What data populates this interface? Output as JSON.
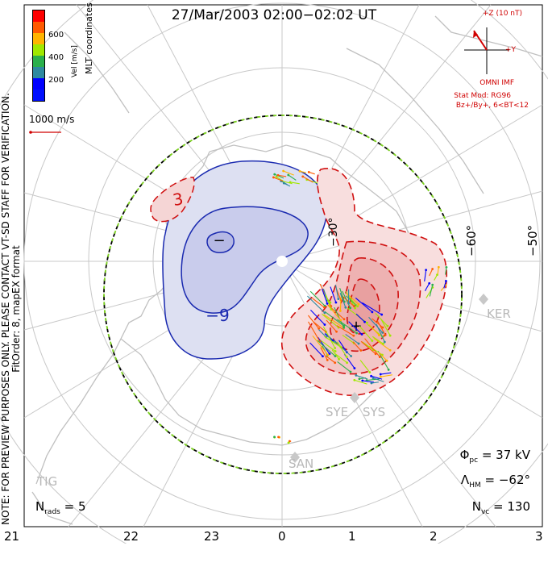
{
  "title": "27/Mar/2003 02:00−02:02 UT",
  "side_note": {
    "line1": "NOTE: FOR PREVIEW PURPOSES ONLY. PLEASE CONTACT VT-SD STAFF FOR VERIFICATION.",
    "line2": "FitOrder: 8, mapEX format"
  },
  "colorbar": {
    "label": "Vel [m/s]",
    "coord_label": "MLT coordinates",
    "ticks": [
      "600",
      "400",
      "200"
    ],
    "colors": [
      "#ff0000",
      "#ff5a00",
      "#ffb400",
      "#a0e800",
      "#2ab04c",
      "#2e8aa0",
      "#0000ff",
      "#0010ff"
    ]
  },
  "reference_vector": {
    "label": "1000 m/s",
    "color": "#d00000"
  },
  "imf": {
    "bz_label": "+Z (10 nT)",
    "by_label": "+Y",
    "source": "OMNI IMF",
    "stat_model": "Stat Mod: RG96",
    "condition": "Bz+/By+, 6<BT<12"
  },
  "stats": {
    "phi_pc": {
      "symbol": "Φ",
      "sub": "pc",
      "value": " = 37 kV"
    },
    "lambda_hm": {
      "symbol": "Λ",
      "sub": "HM",
      "value": " = −62°"
    },
    "n_vc": {
      "symbol": "N",
      "sub": "vc",
      "value": " = 130"
    },
    "n_rads": {
      "symbol": "N",
      "sub": "rads",
      "value": " = 5"
    }
  },
  "mlt_ticks": [
    "21",
    "22",
    "23",
    "0",
    "1",
    "2",
    "3"
  ],
  "latitude_labels": [
    "−60°",
    "−50°"
  ],
  "inner_lat_label": "−30°",
  "contour_labels": {
    "negative": "−9",
    "positive": "3",
    "center_neg": "−",
    "center_pos": "+"
  },
  "sites": [
    "KER",
    "SYE",
    "SYS",
    "SAN",
    "TIG"
  ],
  "colors": {
    "negative_cell_fill": "#dde0f2",
    "negative_cell_line": "#1a2ab0",
    "positive_cell_fill": "#f5c8c8",
    "positive_cell_line": "#d01010",
    "grid": "#c8c8c8",
    "coast": "#c0c0c0",
    "boundary_dash": "#7ed321"
  }
}
